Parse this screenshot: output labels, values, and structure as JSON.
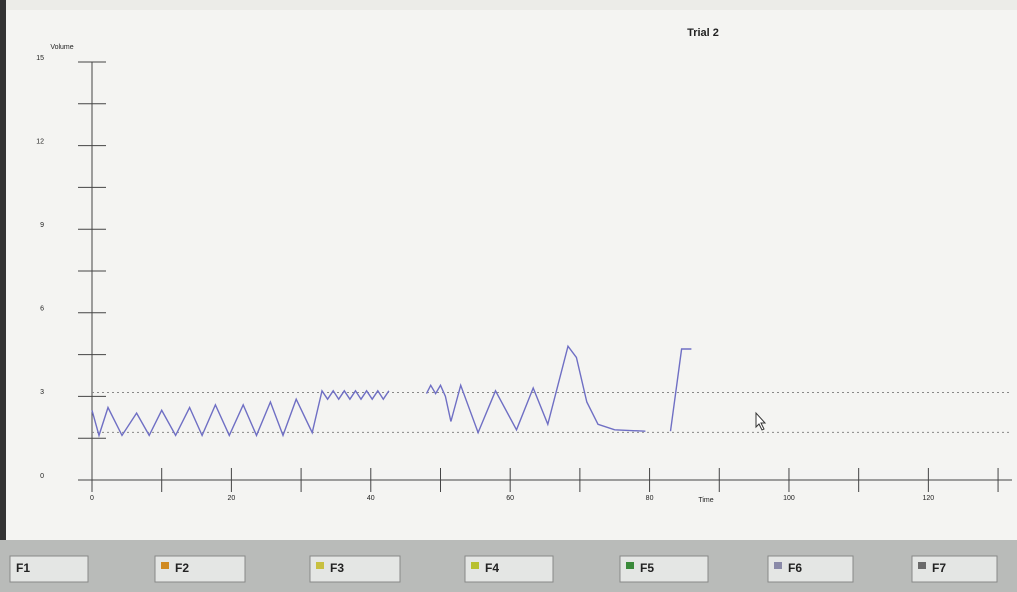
{
  "chart_data": {
    "type": "line",
    "title": "Trial 2",
    "x_label": "Time",
    "y_label": "Volume",
    "x": [
      0,
      1,
      2.3,
      4.3,
      6.4,
      8.2,
      10,
      12,
      14,
      15.8,
      17.7,
      19.7,
      21.7,
      23.6,
      25.6,
      27.4,
      29.3,
      31.6,
      33,
      33.8,
      34.6,
      35.4,
      36.2,
      37,
      37.8,
      38.6,
      39.4,
      40.2,
      41,
      41.8,
      42.6,
      45,
      48,
      48.6,
      49.3,
      50,
      50.7,
      51.5,
      52.9,
      55.4,
      57.9,
      60.9,
      63.3,
      65.4,
      68.3,
      69.5,
      71,
      72.6,
      75,
      79.4,
      81,
      83,
      84.6,
      86
    ],
    "series": [
      {
        "name": "Volume",
        "color": "#6f6fc4",
        "values": [
          2.5,
          1.6,
          2.6,
          1.6,
          2.4,
          1.6,
          2.5,
          1.6,
          2.6,
          1.6,
          2.7,
          1.6,
          2.7,
          1.6,
          2.8,
          1.6,
          2.9,
          1.7,
          3.2,
          2.9,
          3.2,
          2.9,
          3.2,
          2.9,
          3.2,
          2.9,
          3.2,
          2.9,
          3.2,
          2.9,
          3.2,
          null,
          3.1,
          3.4,
          3.1,
          3.4,
          3.0,
          2.1,
          3.4,
          1.7,
          3.2,
          1.8,
          3.3,
          2.0,
          4.8,
          4.4,
          2.8,
          2.0,
          1.8,
          1.75,
          null,
          1.75,
          4.7,
          4.7
        ]
      }
    ],
    "xlim": [
      0,
      132
    ],
    "ylim": [
      0,
      15
    ],
    "xticks": [
      0,
      20,
      40,
      60,
      80,
      100,
      120
    ],
    "yticks": [
      0,
      3,
      6,
      9,
      12,
      15
    ],
    "minor_xticks": [
      10,
      30,
      50,
      70,
      90,
      110,
      130
    ],
    "minor_yticks": [
      1.5,
      4.5,
      7.5,
      10.5,
      13.5
    ],
    "ref_lines": [
      3.14,
      1.71
    ]
  },
  "toolbar": {
    "buttons": [
      "F1",
      "F2",
      "F3",
      "F4",
      "F5",
      "F6",
      "F7"
    ]
  }
}
